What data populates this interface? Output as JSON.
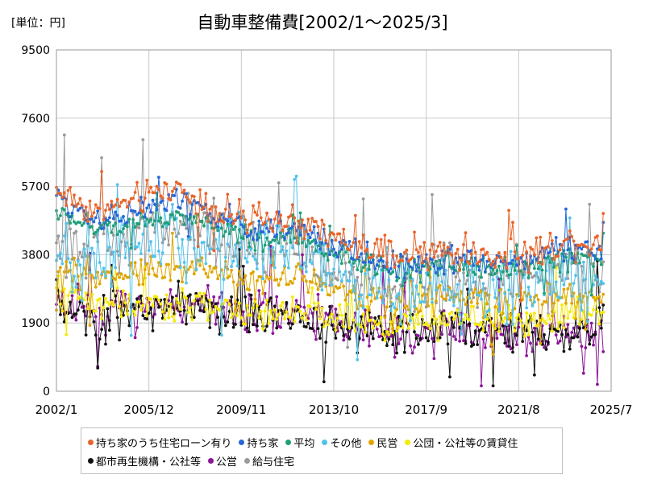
{
  "chart_data": {
    "type": "line",
    "title": "自動車整備費[2002/1～2025/3]",
    "unit_label": "[単位：円]",
    "x_start": "2002-01",
    "x_end": "2025-07",
    "x_ticks": [
      "2002/1",
      "2005/12",
      "2009/11",
      "2013/10",
      "2017/9",
      "2021/8",
      "2025/7"
    ],
    "y_ticks": [
      "0",
      "1900",
      "3800",
      "5700",
      "7600",
      "9500"
    ],
    "ylim": [
      0,
      9500
    ],
    "grid": true,
    "legend_position": "bottom",
    "series": [
      {
        "name": "持ち家のうち住宅ローン有り",
        "color": "#e8642a",
        "base": [
          5600,
          5000,
          5300,
          5700,
          5100,
          4700,
          4800,
          4300,
          3900,
          3700,
          3900,
          3750,
          3750,
          4200,
          4100
        ],
        "amp": 650,
        "last": 4950
      },
      {
        "name": "持ち家",
        "color": "#2567d6",
        "base": [
          5400,
          4800,
          5000,
          5300,
          4900,
          4500,
          4600,
          4100,
          3700,
          3500,
          3700,
          3600,
          3600,
          4000,
          3900
        ],
        "amp": 550,
        "last": 4700
      },
      {
        "name": "平均",
        "color": "#1f9e7a",
        "base": [
          5000,
          4500,
          4700,
          4900,
          4600,
          4200,
          4300,
          3900,
          3500,
          3300,
          3500,
          3400,
          3400,
          3700,
          3700
        ],
        "amp": 450,
        "last": 4400
      },
      {
        "name": "その他",
        "color": "#52c2ea",
        "base": [
          3600,
          3700,
          4100,
          4300,
          4100,
          3800,
          3900,
          3500,
          2800,
          2800,
          3000,
          2800,
          2900,
          3100,
          3100
        ],
        "amp": 1500,
        "last": 3000
      },
      {
        "name": "民営",
        "color": "#e0a500",
        "base": [
          3300,
          3100,
          3300,
          3500,
          3400,
          3100,
          3200,
          2900,
          2600,
          2500,
          2600,
          2500,
          2500,
          2600,
          2600
        ],
        "amp": 650,
        "last": 2700
      },
      {
        "name": "公団・公社等の賃貸住",
        "color": "#f6ea00",
        "base": [
          2900,
          2400,
          2400,
          2400,
          2300,
          2200,
          2300,
          2100,
          2000,
          1900,
          2000,
          2000,
          2000,
          2100,
          2100
        ],
        "amp": 700,
        "last": 2200
      },
      {
        "name": "都市再生機構・公社等",
        "color": "#111111",
        "base": [
          2500,
          2000,
          2200,
          2400,
          2300,
          2100,
          2200,
          1900,
          1700,
          1600,
          1700,
          1600,
          1600,
          1600,
          1700
        ],
        "amp": 1000,
        "last": 2400
      },
      {
        "name": "公営",
        "color": "#8a1696",
        "base": [
          2500,
          2200,
          2400,
          2500,
          2400,
          2200,
          2300,
          2000,
          1700,
          1600,
          1700,
          1600,
          1600,
          1700,
          1700
        ],
        "amp": 900,
        "last": 1100
      },
      {
        "name": "給与住宅",
        "color": "#9a9a9a",
        "base": [
          4300,
          4000,
          4300,
          4600,
          4300,
          4000,
          4100,
          3600,
          3200,
          3000,
          3200,
          3100,
          3100,
          3400,
          3400
        ],
        "amp": 1400,
        "last": 3600
      }
    ]
  }
}
